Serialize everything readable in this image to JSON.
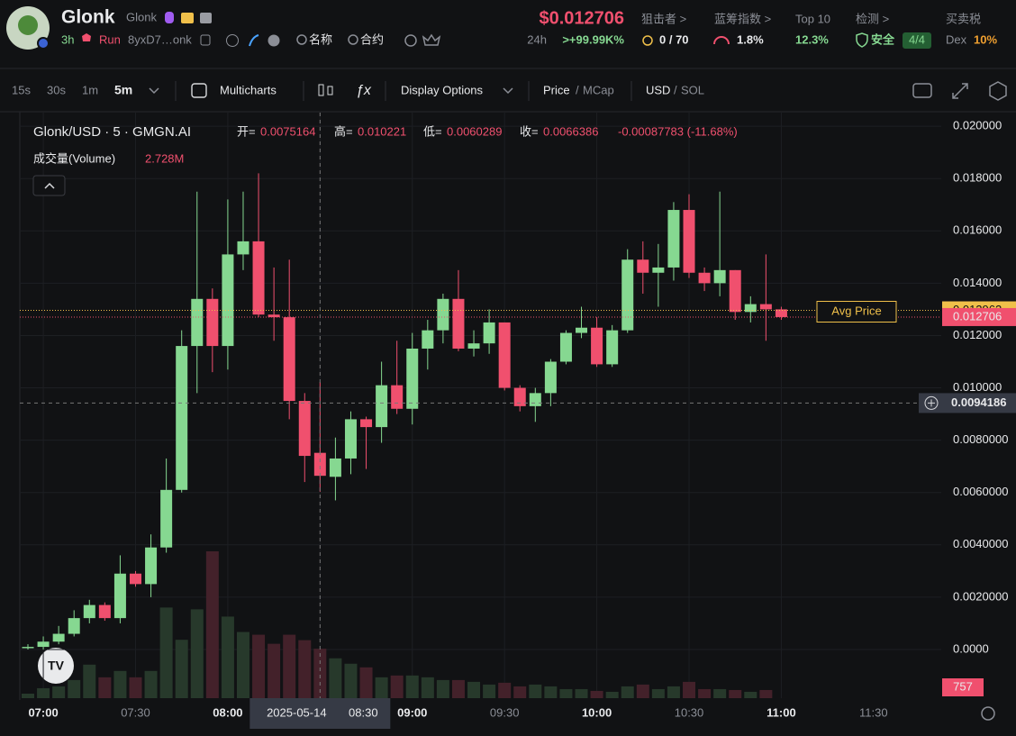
{
  "header": {
    "name": "Glonk",
    "symbol": "Glonk",
    "age": "3h",
    "tag": "Run",
    "address": "8yxD7…onk",
    "search_name": "名称",
    "search_contract": "合约",
    "price": "$0.012706",
    "change_period": "24h",
    "change": ">+99.99K%",
    "stats": [
      {
        "label": "狙击者 >",
        "value": "0 / 70"
      },
      {
        "label": "蓝筹指数 >",
        "value": "1.8%"
      },
      {
        "label": "Top 10",
        "value": "12.3%"
      },
      {
        "label": "检测 >",
        "value": "安全",
        "badge": "4/4"
      },
      {
        "label": "买卖税",
        "prefix": "Dex",
        "value": "10%"
      }
    ]
  },
  "toolbar": {
    "intervals": [
      "15s",
      "30s",
      "1m",
      "5m"
    ],
    "multicharts": "Multicharts",
    "display_options": "Display Options",
    "price": "Price",
    "mcap": "MCap",
    "usd": "USD",
    "sol": "SOL"
  },
  "chart_data": {
    "type": "candlestick",
    "legend_title": "Glonk/USD · 5 · GMGN.AI",
    "open_label": "开=",
    "high_label": "高=",
    "low_label": "低=",
    "close_label": "收=",
    "change": "-0.00087783 (-11.68%)",
    "volume_title": "成交量(Volume)",
    "volume_value_label": "2.728M",
    "categories": [
      null,
      "07:00",
      null,
      null,
      null,
      null,
      null,
      "07:30",
      null,
      null,
      null,
      null,
      null,
      "08:00",
      null,
      null,
      null,
      null,
      null,
      "08:30",
      null,
      null,
      null,
      null,
      null,
      "09:00",
      null,
      null,
      null,
      null,
      null,
      "09:30",
      null,
      null,
      null,
      null,
      null,
      "10:00",
      null,
      null,
      null,
      null,
      null,
      "10:30",
      null,
      null,
      null,
      null,
      null,
      "11:00"
    ],
    "future_ticks": [
      "11:30"
    ],
    "crosshair_date": "2025-05-14",
    "crosshair_price": 0.0094186,
    "open": [
      5e-05,
      0.0001,
      0.0003,
      0.0006,
      0.0012,
      0.0017,
      0.0012,
      0.0029,
      0.0025,
      0.0039,
      0.0061,
      0.0116,
      0.0134,
      0.0116,
      0.0151,
      0.0156,
      0.0128,
      0.0127,
      0.0095,
      0.0075164,
      0.0066,
      0.0073,
      0.0088,
      0.0085,
      0.0101,
      0.0092,
      0.0115,
      0.0122,
      0.0134,
      0.0115,
      0.0117,
      0.0125,
      0.01,
      0.0093,
      0.0098,
      0.011,
      0.0121,
      0.0123,
      0.0109,
      0.0122,
      0.0149,
      0.0144,
      0.0146,
      0.0168,
      0.0144,
      0.014,
      0.0145,
      0.0129,
      0.0132,
      0.013
    ],
    "high": [
      0.0002,
      0.0005,
      0.0009,
      0.0015,
      0.0019,
      0.0018,
      0.0036,
      0.003,
      0.0044,
      0.0073,
      0.0122,
      0.0175,
      0.0138,
      0.0172,
      0.0175,
      0.0182,
      0.0146,
      0.0149,
      0.0098,
      0.010221,
      0.0081,
      0.0091,
      0.0089,
      0.011,
      0.0118,
      0.0121,
      0.0126,
      0.0136,
      0.0145,
      0.0122,
      0.013,
      0.0125,
      0.0101,
      0.01,
      0.0111,
      0.0122,
      0.0131,
      0.0127,
      0.0124,
      0.0153,
      0.0156,
      0.0155,
      0.0171,
      0.0174,
      0.0146,
      0.0175,
      0.0145,
      0.0135,
      0.0151,
      0.0131
    ],
    "low": [
      0,
      0,
      0.0002,
      0.0005,
      0.001,
      0.0011,
      0.001,
      0.0024,
      0.002,
      0.0037,
      0.006,
      0.0098,
      0.0106,
      0.0107,
      0.0145,
      0.0127,
      0.0118,
      0.0088,
      0.0064,
      0.0060289,
      0.0057,
      0.0067,
      0.0069,
      0.0079,
      0.009,
      0.0086,
      0.0107,
      0.0117,
      0.0114,
      0.0112,
      0.0113,
      0.0099,
      0.0091,
      0.0087,
      0.0093,
      0.0109,
      0.0119,
      0.0108,
      0.0108,
      0.0121,
      0.0136,
      0.0131,
      0.0141,
      0.0142,
      0.0137,
      0.0135,
      0.0126,
      0.0125,
      0.0118,
      0.0126
    ],
    "close": [
      0.0001,
      0.0003,
      0.0006,
      0.0012,
      0.0017,
      0.0012,
      0.0029,
      0.0025,
      0.0039,
      0.0061,
      0.0116,
      0.0134,
      0.0116,
      0.0151,
      0.0156,
      0.0128,
      0.0127,
      0.0095,
      0.0074,
      0.0066386,
      0.0073,
      0.0088,
      0.0085,
      0.0101,
      0.0092,
      0.0115,
      0.0122,
      0.0134,
      0.0115,
      0.0117,
      0.0125,
      0.01,
      0.0093,
      0.0098,
      0.011,
      0.0121,
      0.0123,
      0.0109,
      0.0122,
      0.0149,
      0.0144,
      0.0146,
      0.0168,
      0.0144,
      0.014,
      0.0145,
      0.0129,
      0.0132,
      0.013,
      0.012706
    ],
    "volume": [
      250000,
      550000,
      650000,
      1000000,
      1850000,
      1150000,
      1500000,
      1150000,
      1500000,
      5000000,
      3220000,
      4900000,
      8100000,
      4500000,
      3650000,
      3500000,
      3000000,
      3500000,
      3200000,
      2728000,
      2200000,
      1900000,
      1700000,
      1150000,
      1250000,
      1250000,
      1150000,
      1000000,
      1000000,
      900000,
      750000,
      850000,
      650000,
      750000,
      650000,
      500000,
      500000,
      400000,
      350000,
      650000,
      750000,
      500000,
      650000,
      900000,
      500000,
      500000,
      450000,
      350000,
      450000,
      757
    ],
    "up_color": "#86d891",
    "down_color": "#f0506e",
    "up_volume_color": "#27392b",
    "down_volume_color": "#43212a",
    "avg_price": 0.012962,
    "avg_price_label": "Avg Price",
    "avg_color": "#f0c04a",
    "last_price": 0.012706,
    "ylim": [
      -0.00186,
      0.02052
    ],
    "yticks": [
      {
        "value": 0,
        "label": "0.0000"
      },
      {
        "value": 0.002,
        "label": "0.0020000"
      },
      {
        "value": 0.004,
        "label": "0.0040000"
      },
      {
        "value": 0.006,
        "label": "0.0060000"
      },
      {
        "value": 0.008,
        "label": "0.0080000"
      },
      {
        "value": 0.01,
        "label": "0.010000"
      },
      {
        "value": 0.012,
        "label": "0.012000"
      },
      {
        "value": 0.014,
        "label": "0.014000"
      },
      {
        "value": 0.016,
        "label": "0.016000"
      },
      {
        "value": 0.018,
        "label": "0.018000"
      },
      {
        "value": 0.02,
        "label": "0.020000"
      }
    ],
    "grid": true
  }
}
